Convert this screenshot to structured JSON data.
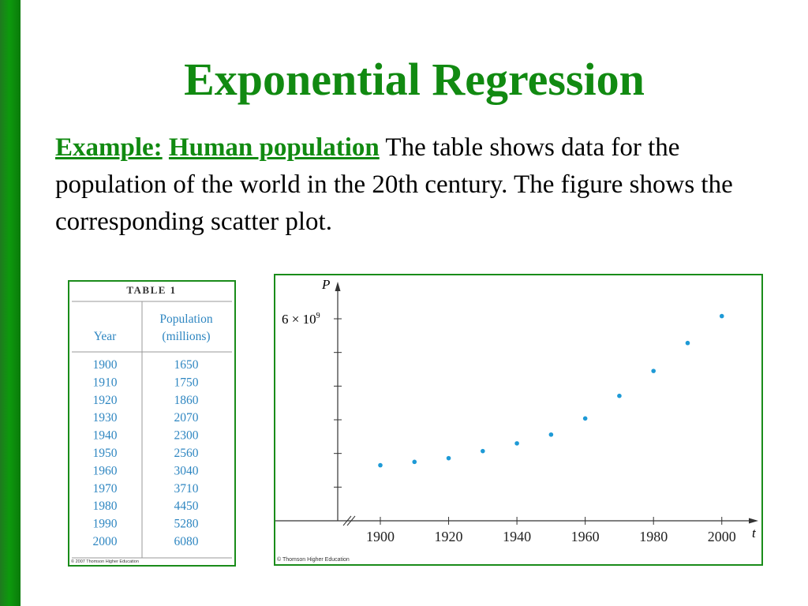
{
  "title": "Exponential Regression",
  "intro": {
    "example_label": "Example:",
    "topic_label": "Human population",
    "text": " The table shows data for the population of the world in the 20th century. The figure shows the corresponding scatter plot."
  },
  "table": {
    "caption": "TABLE 1",
    "col1_header": "Year",
    "col2_header_line1": "Population",
    "col2_header_line2": "(millions)",
    "rows": [
      {
        "year": "1900",
        "pop": "1650"
      },
      {
        "year": "1910",
        "pop": "1750"
      },
      {
        "year": "1920",
        "pop": "1860"
      },
      {
        "year": "1930",
        "pop": "2070"
      },
      {
        "year": "1940",
        "pop": "2300"
      },
      {
        "year": "1950",
        "pop": "2560"
      },
      {
        "year": "1960",
        "pop": "3040"
      },
      {
        "year": "1970",
        "pop": "3710"
      },
      {
        "year": "1980",
        "pop": "4450"
      },
      {
        "year": "1990",
        "pop": "5280"
      },
      {
        "year": "2000",
        "pop": "6080"
      }
    ],
    "copyright": "© 2007 Thomson Higher Education"
  },
  "chart_data": {
    "type": "scatter",
    "x": [
      1900,
      1910,
      1920,
      1930,
      1940,
      1950,
      1960,
      1970,
      1980,
      1990,
      2000
    ],
    "y": [
      1650,
      1750,
      1860,
      2070,
      2300,
      2560,
      3040,
      3710,
      4450,
      5280,
      6080
    ],
    "xlabel": "t",
    "ylabel": "P",
    "x_ticks": [
      "1900",
      "1920",
      "1940",
      "1960",
      "1980",
      "2000"
    ],
    "y_tick_label_base": "6 × 10",
    "y_tick_label_exp": "9",
    "y_tick_label_value": 6000,
    "xlim": [
      1878,
      2012
    ],
    "ylim": [
      0,
      7200
    ],
    "point_color": "#1e9ad6",
    "copyright": "© Thomson Higher Education"
  }
}
